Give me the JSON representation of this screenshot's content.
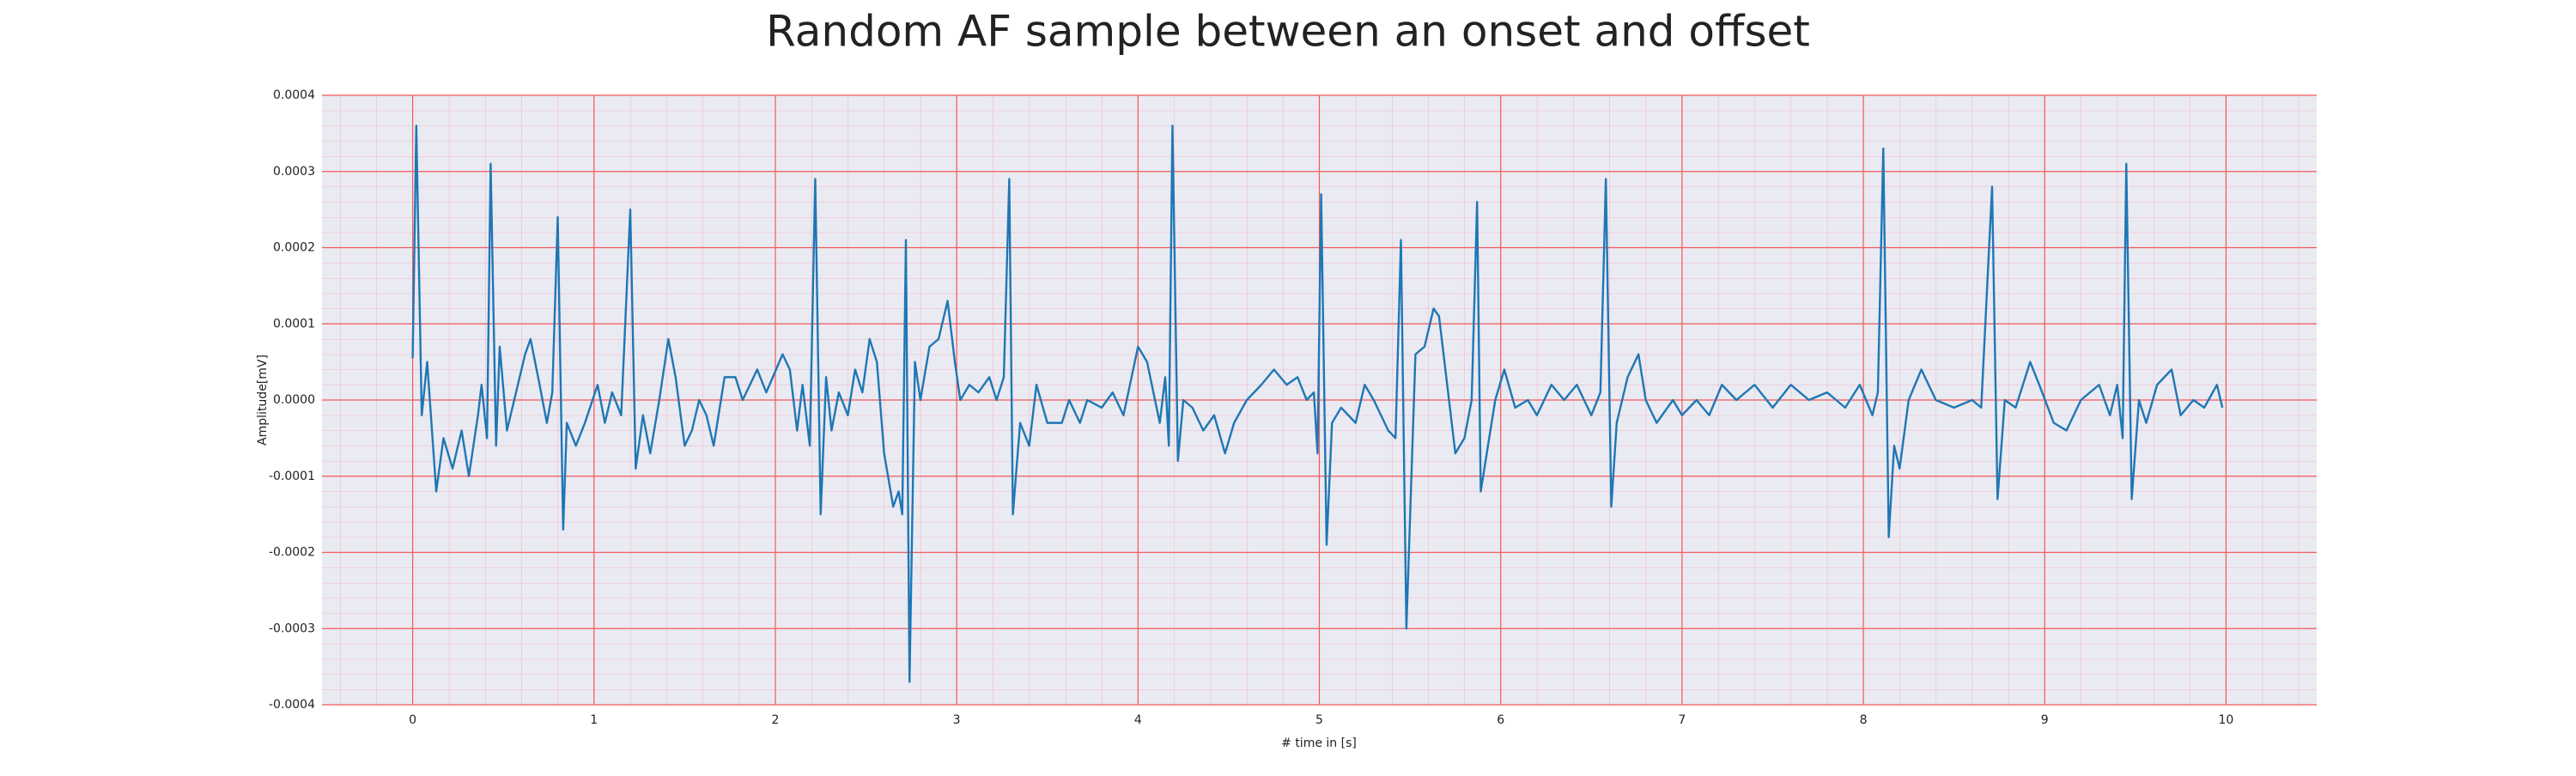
{
  "chart_data": {
    "type": "line",
    "title": "Random AF sample between an onset and offset",
    "x_label": "# time in [s]",
    "y_label": "Amplitude[mV]",
    "color": "#1f77b4",
    "grid": true,
    "minor_grid": true,
    "xlim": [
      -0.5,
      10.5
    ],
    "ylim": [
      -0.0004,
      0.0004
    ],
    "xticks": [
      0,
      1,
      2,
      3,
      4,
      5,
      6,
      7,
      8,
      9,
      10
    ],
    "yticks": [
      {
        "value": -0.0004,
        "label": "-0.0004"
      },
      {
        "value": -0.0003,
        "label": "-0.0003"
      },
      {
        "value": -0.0002,
        "label": "-0.0002"
      },
      {
        "value": -0.0001,
        "label": "-0.0001"
      },
      {
        "value": 0,
        "label": "0.0000"
      },
      {
        "value": 0.0001,
        "label": "0.0001"
      },
      {
        "value": 0.0002,
        "label": "0.0002"
      },
      {
        "value": 0.0003,
        "label": "0.0003"
      },
      {
        "value": 0.0004,
        "label": "0.0004"
      }
    ],
    "x": [
      0,
      0.02,
      0.05,
      0.08,
      0.13,
      0.17,
      0.22,
      0.27,
      0.31,
      0.36,
      0.38,
      0.41,
      0.43,
      0.46,
      0.48,
      0.52,
      0.56,
      0.62,
      0.65,
      0.7,
      0.74,
      0.77,
      0.8,
      0.83,
      0.85,
      0.9,
      0.95,
      1.02,
      1.06,
      1.1,
      1.15,
      1.2,
      1.23,
      1.27,
      1.31,
      1.36,
      1.41,
      1.45,
      1.5,
      1.54,
      1.58,
      1.62,
      1.66,
      1.72,
      1.78,
      1.82,
      1.9,
      1.95,
      2.04,
      2.08,
      2.12,
      2.15,
      2.19,
      2.22,
      2.25,
      2.28,
      2.31,
      2.35,
      2.4,
      2.44,
      2.48,
      2.52,
      2.56,
      2.6,
      2.65,
      2.68,
      2.7,
      2.72,
      2.74,
      2.77,
      2.8,
      2.85,
      2.9,
      2.95,
      2.99,
      3.02,
      3.07,
      3.12,
      3.18,
      3.22,
      3.26,
      3.29,
      3.31,
      3.35,
      3.4,
      3.44,
      3.5,
      3.58,
      3.62,
      3.68,
      3.72,
      3.8,
      3.86,
      3.92,
      4,
      4.05,
      4.12,
      4.15,
      4.17,
      4.19,
      4.22,
      4.25,
      4.3,
      4.36,
      4.42,
      4.48,
      4.53,
      4.6,
      4.68,
      4.75,
      4.82,
      4.88,
      4.93,
      4.97,
      4.99,
      5.01,
      5.04,
      5.07,
      5.12,
      5.2,
      5.25,
      5.3,
      5.38,
      5.42,
      5.45,
      5.48,
      5.53,
      5.58,
      5.63,
      5.66,
      5.7,
      5.75,
      5.8,
      5.84,
      5.87,
      5.89,
      5.93,
      5.97,
      6.02,
      6.08,
      6.15,
      6.2,
      6.28,
      6.35,
      6.42,
      6.5,
      6.55,
      6.58,
      6.61,
      6.64,
      6.7,
      6.76,
      6.8,
      6.86,
      6.95,
      7,
      7.08,
      7.15,
      7.22,
      7.3,
      7.4,
      7.5,
      7.6,
      7.7,
      7.8,
      7.9,
      7.98,
      8.05,
      8.08,
      8.11,
      8.14,
      8.17,
      8.2,
      8.25,
      8.32,
      8.4,
      8.5,
      8.6,
      8.65,
      8.71,
      8.74,
      8.78,
      8.84,
      8.92,
      8.97,
      9.05,
      9.12,
      9.2,
      9.3,
      9.36,
      9.4,
      9.43,
      9.45,
      9.48,
      9.52,
      9.56,
      9.62,
      9.7,
      9.75,
      9.82,
      9.88,
      9.95,
      9.98
    ],
    "values": [
      5.5e-05,
      0.00036,
      -2e-05,
      5e-05,
      -0.00012,
      -5e-05,
      -9e-05,
      -4e-05,
      -0.0001,
      -2e-05,
      2e-05,
      -5e-05,
      0.00031,
      -6e-05,
      7e-05,
      -4e-05,
      0,
      6e-05,
      8e-05,
      2e-05,
      -3e-05,
      1e-05,
      0.00024,
      -0.00017,
      -3e-05,
      -6e-05,
      -3e-05,
      2e-05,
      -3e-05,
      1e-05,
      -2e-05,
      0.00025,
      -9e-05,
      -2e-05,
      -7e-05,
      0,
      8e-05,
      3e-05,
      -6e-05,
      -4e-05,
      0,
      -2e-05,
      -6e-05,
      3e-05,
      3e-05,
      0,
      4e-05,
      1e-05,
      6e-05,
      4e-05,
      -4e-05,
      2e-05,
      -6e-05,
      0.00029,
      -0.00015,
      3e-05,
      -4e-05,
      1e-05,
      -2e-05,
      4e-05,
      1e-05,
      8e-05,
      5e-05,
      -7e-05,
      -0.00014,
      -0.00012,
      -0.00015,
      0.00021,
      -0.00037,
      5e-05,
      0,
      7e-05,
      8e-05,
      0.00013,
      5e-05,
      0,
      2e-05,
      1e-05,
      3e-05,
      0,
      3e-05,
      0.00029,
      -0.00015,
      -3e-05,
      -6e-05,
      2e-05,
      -3e-05,
      -3e-05,
      0,
      -3e-05,
      0,
      -1e-05,
      1e-05,
      -2e-05,
      7e-05,
      5e-05,
      -3e-05,
      3e-05,
      -6e-05,
      0.00036,
      -8e-05,
      0,
      -1e-05,
      -4e-05,
      -2e-05,
      -7e-05,
      -3e-05,
      0,
      2e-05,
      4e-05,
      2e-05,
      3e-05,
      0,
      1e-05,
      -7e-05,
      0.00027,
      -0.00019,
      -3e-05,
      -1e-05,
      -3e-05,
      2e-05,
      0,
      -4e-05,
      -5e-05,
      0.00021,
      -0.0003,
      6e-05,
      7e-05,
      0.00012,
      0.00011,
      3e-05,
      -7e-05,
      -5e-05,
      0,
      0.00026,
      -0.00012,
      -6e-05,
      0,
      4e-05,
      -1e-05,
      0,
      -2e-05,
      2e-05,
      0,
      2e-05,
      -2e-05,
      1e-05,
      0.00029,
      -0.00014,
      -3e-05,
      3e-05,
      6e-05,
      0,
      -3e-05,
      0,
      -2e-05,
      0,
      -2e-05,
      2e-05,
      0,
      2e-05,
      -1e-05,
      2e-05,
      0,
      1e-05,
      -1e-05,
      2e-05,
      -2e-05,
      1e-05,
      0.00033,
      -0.00018,
      -6e-05,
      -9e-05,
      0,
      4e-05,
      0,
      -1e-05,
      0,
      -1e-05,
      0.00028,
      -0.00013,
      0,
      -1e-05,
      5e-05,
      2e-05,
      -3e-05,
      -4e-05,
      0,
      2e-05,
      -2e-05,
      2e-05,
      -5e-05,
      0.00031,
      -0.00013,
      0,
      -3e-05,
      2e-05,
      4e-05,
      -2e-05,
      0,
      -1e-05,
      2e-05,
      -1e-05
    ]
  }
}
